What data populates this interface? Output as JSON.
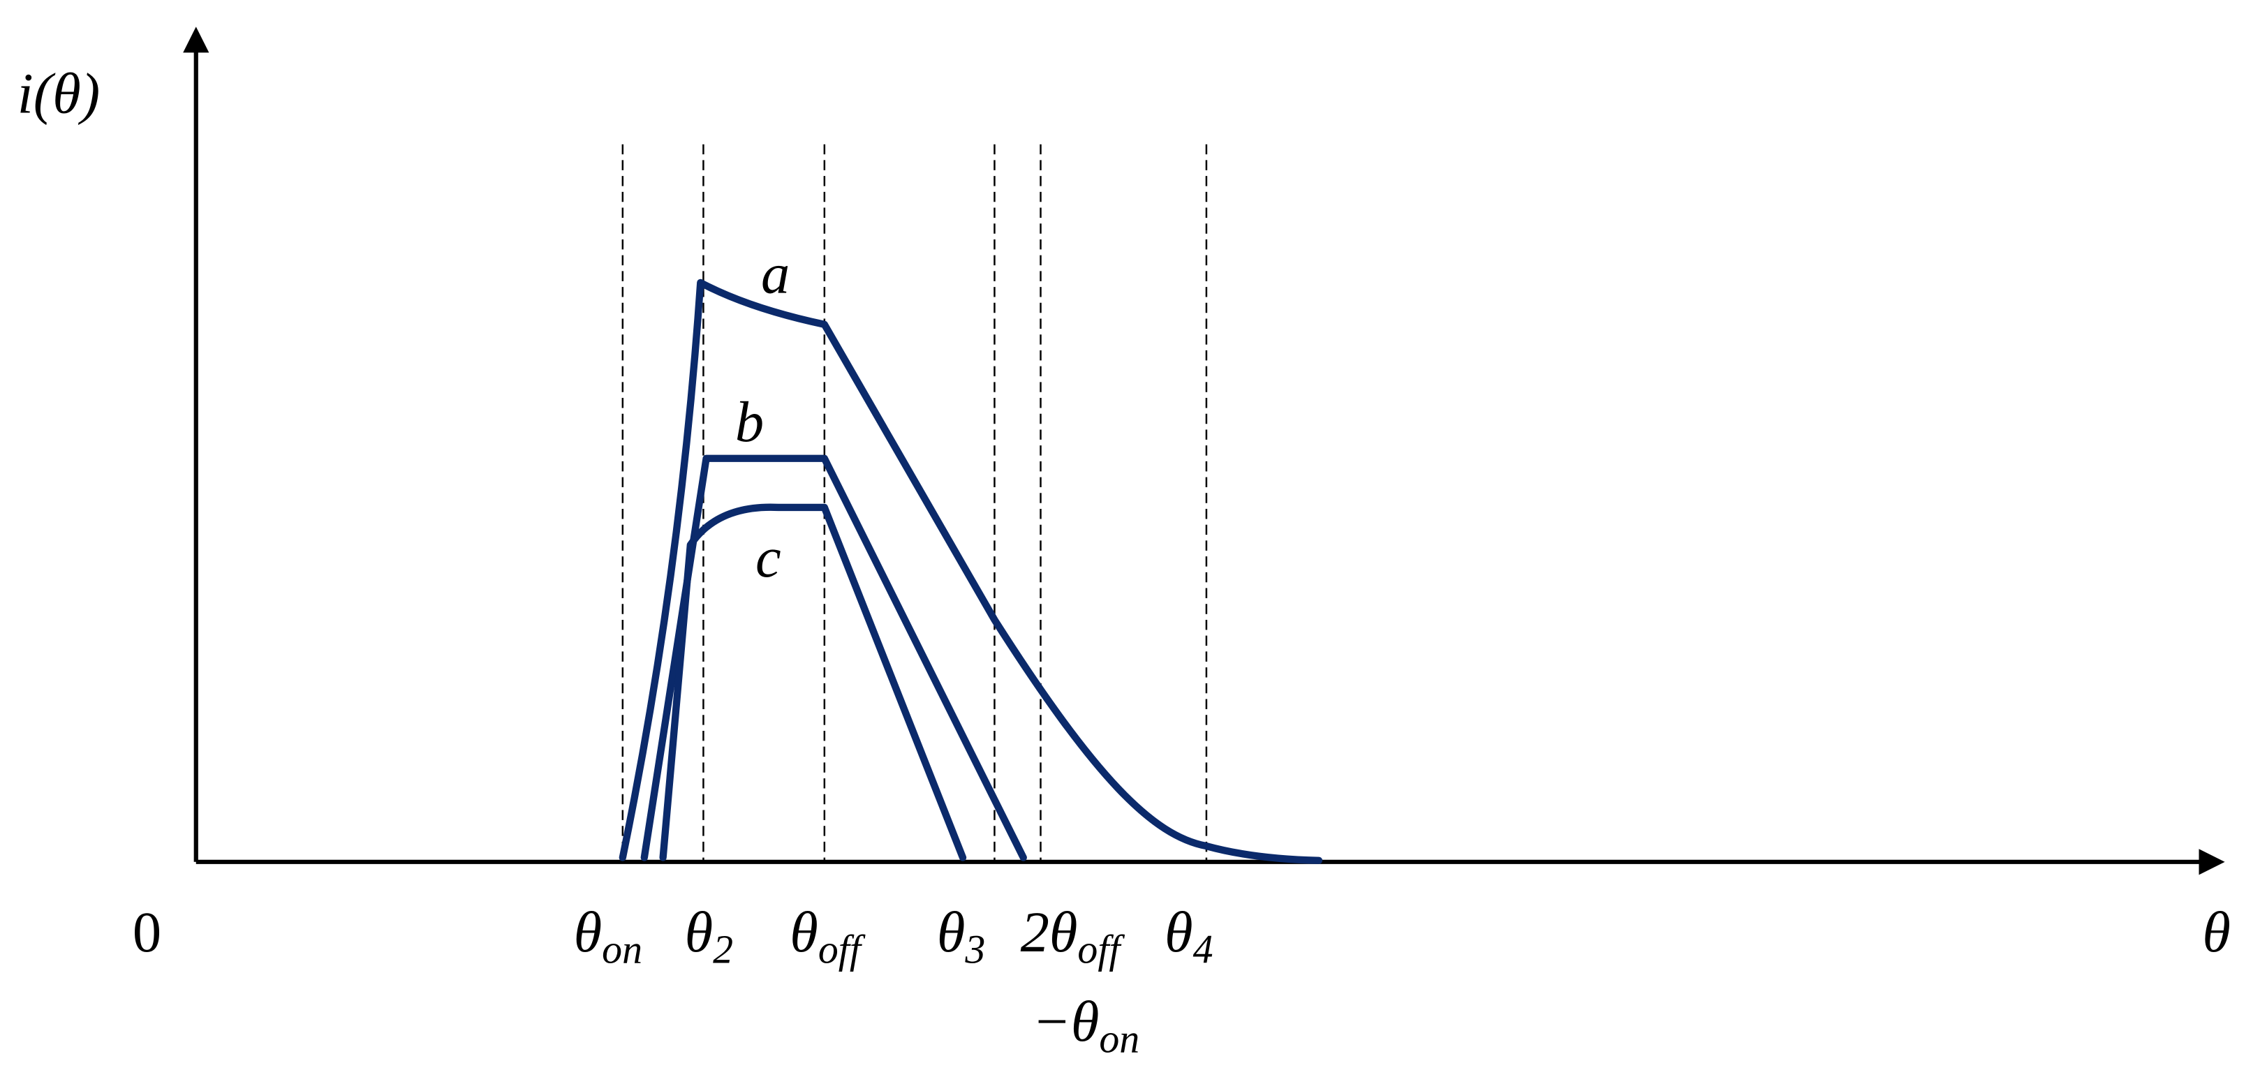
{
  "y_axis_label": "i(θ)",
  "x_axis_label": "θ",
  "origin_label": "0",
  "x_labels": [
    {
      "symbol": "θ",
      "subscript": "on"
    },
    {
      "symbol": "θ",
      "subscript": "2"
    },
    {
      "symbol": "θ",
      "subscript": "off"
    },
    {
      "symbol": "θ",
      "subscript": "3"
    },
    {
      "symbol": "2θ",
      "subscript": "off",
      "line2": "−θ",
      "line2_subscript": "on"
    },
    {
      "symbol": "θ",
      "subscript": "4"
    }
  ],
  "curve_labels": [
    "a",
    "b",
    "c"
  ]
}
